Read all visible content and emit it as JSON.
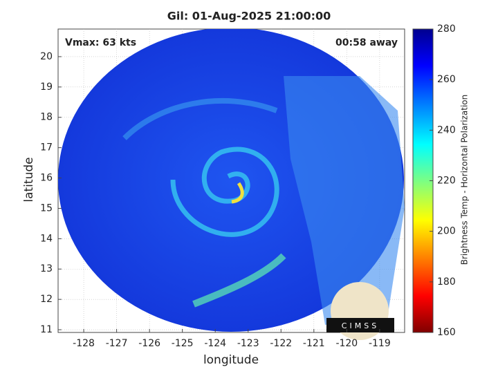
{
  "chart_data": {
    "type": "image",
    "title": "Gil: 01-Aug-2025 21:00:00",
    "annotations": [
      "Vmax: 63 kts",
      "00:58 away"
    ],
    "x_label": "longitude",
    "y_label": "latitude",
    "xlim": [
      -128.78,
      -118.24
    ],
    "xticks": [
      -128,
      -127,
      -126,
      -125,
      -124,
      -123,
      -122,
      -121,
      -120,
      -119
    ],
    "ylim": [
      10.91,
      20.91
    ],
    "yticks": [
      11,
      12,
      13,
      14,
      15,
      16,
      17,
      18,
      19,
      20
    ],
    "grid": true,
    "colorbar": {
      "label": "Brightness Temp - Horizontal Polarization",
      "colormap": "jet",
      "lim": [
        160,
        280
      ],
      "ticks": [
        160,
        180,
        200,
        220,
        240,
        260,
        280
      ]
    },
    "logo": "CIMSS"
  }
}
